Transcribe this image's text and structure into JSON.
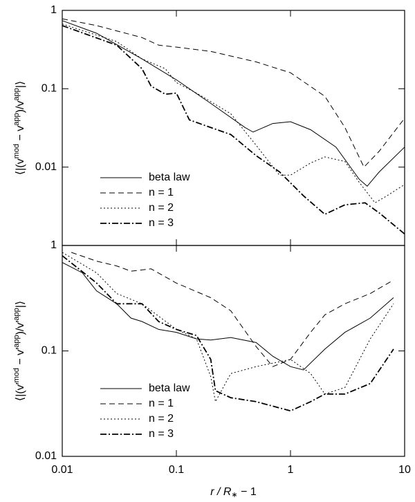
{
  "chart_data": [
    {
      "type": "line",
      "log_x": true,
      "log_y": true,
      "xlim": [
        0.01,
        10
      ],
      "ylim": [
        0.001,
        1
      ],
      "yticks": [
        0.01,
        0.1,
        1
      ],
      "ylabel": [
        "⟨|(v",
        "mod",
        " − v",
        "app",
        ")/v",
        "app",
        "|⟩"
      ],
      "legend": "lower left",
      "series": [
        {
          "name": "beta law",
          "color": "#000000",
          "dash": "solid",
          "x": [
            0.01,
            0.02,
            0.05,
            0.1,
            0.2,
            0.4,
            0.47,
            0.7,
            1,
            1.5,
            2.5,
            4,
            4.7,
            6,
            10
          ],
          "values": [
            0.74,
            0.51,
            0.24,
            0.13,
            0.065,
            0.032,
            0.028,
            0.036,
            0.038,
            0.03,
            0.018,
            0.007,
            0.0057,
            0.0087,
            0.018
          ]
        },
        {
          "name": "n = 1",
          "color": "#000000",
          "dash": "dashed",
          "x": [
            0.01,
            0.02,
            0.05,
            0.07,
            0.1,
            0.2,
            0.5,
            1,
            2,
            3,
            4.4,
            6,
            10
          ],
          "values": [
            0.78,
            0.64,
            0.45,
            0.36,
            0.34,
            0.3,
            0.22,
            0.16,
            0.08,
            0.032,
            0.01,
            0.016,
            0.042
          ]
        },
        {
          "name": "n = 2",
          "color": "#000000",
          "dash": "dotted",
          "x": [
            0.01,
            0.03,
            0.05,
            0.08,
            0.1,
            0.15,
            0.3,
            0.5,
            0.8,
            1,
            1.5,
            2,
            3,
            4,
            5.5,
            7,
            10
          ],
          "values": [
            0.67,
            0.4,
            0.24,
            0.18,
            0.12,
            0.088,
            0.048,
            0.019,
            0.0079,
            0.0079,
            0.0113,
            0.0135,
            0.0118,
            0.0064,
            0.0035,
            0.0043,
            0.006
          ]
        },
        {
          "name": "n = 3",
          "color": "#000000",
          "dash": "dashdot",
          "x": [
            0.01,
            0.03,
            0.05,
            0.06,
            0.08,
            0.1,
            0.13,
            0.2,
            0.3,
            0.5,
            0.8,
            1.3,
            2,
            3,
            4.5,
            6,
            10
          ],
          "values": [
            0.64,
            0.36,
            0.18,
            0.108,
            0.085,
            0.088,
            0.04,
            0.032,
            0.026,
            0.014,
            0.0087,
            0.0043,
            0.0025,
            0.0033,
            0.0035,
            0.0026,
            0.0014
          ]
        }
      ]
    },
    {
      "type": "line",
      "log_x": true,
      "log_y": true,
      "xlim": [
        0.01,
        10
      ],
      "xticks": [
        0.01,
        0.1,
        1,
        10
      ],
      "ylim": [
        0.01,
        1
      ],
      "yticks": [
        0.01,
        0.1,
        1
      ],
      "xlabel": [
        "r / R",
        "∗",
        " − 1"
      ],
      "ylabel": [
        "⟨|(v′",
        "mod",
        " − v′",
        "app",
        ")/v′",
        "app",
        "|⟩"
      ],
      "legend": "lower left",
      "series": [
        {
          "name": "beta law",
          "color": "#000000",
          "dash": "solid",
          "x": [
            0.01,
            0.015,
            0.02,
            0.03,
            0.04,
            0.05,
            0.07,
            0.1,
            0.15,
            0.2,
            0.3,
            0.5,
            0.7,
            1,
            1.3,
            2,
            3,
            5,
            8
          ],
          "values": [
            0.69,
            0.55,
            0.37,
            0.28,
            0.205,
            0.19,
            0.16,
            0.15,
            0.13,
            0.127,
            0.134,
            0.12,
            0.089,
            0.071,
            0.066,
            0.104,
            0.15,
            0.205,
            0.32
          ]
        },
        {
          "name": "n = 1",
          "color": "#000000",
          "dash": "dashed",
          "x": [
            0.012,
            0.02,
            0.03,
            0.04,
            0.06,
            0.1,
            0.2,
            0.3,
            0.5,
            0.7,
            1,
            1.5,
            2,
            3,
            5,
            8
          ],
          "values": [
            0.86,
            0.71,
            0.64,
            0.57,
            0.6,
            0.44,
            0.32,
            0.24,
            0.11,
            0.071,
            0.083,
            0.15,
            0.22,
            0.28,
            0.35,
            0.47
          ]
        },
        {
          "name": "n = 2",
          "color": "#000000",
          "dash": "dotted",
          "x": [
            0.01,
            0.02,
            0.03,
            0.05,
            0.1,
            0.15,
            0.2,
            0.22,
            0.3,
            0.5,
            1,
            1.5,
            2,
            3,
            5,
            8
          ],
          "values": [
            0.86,
            0.55,
            0.35,
            0.28,
            0.16,
            0.13,
            0.057,
            0.033,
            0.061,
            0.071,
            0.083,
            0.061,
            0.039,
            0.045,
            0.13,
            0.28
          ]
        },
        {
          "name": "n = 3",
          "color": "#000000",
          "dash": "dashdot",
          "x": [
            0.01,
            0.02,
            0.03,
            0.05,
            0.07,
            0.1,
            0.15,
            0.2,
            0.22,
            0.3,
            0.5,
            1,
            1.5,
            2,
            3,
            5,
            8
          ],
          "values": [
            0.8,
            0.44,
            0.28,
            0.28,
            0.19,
            0.16,
            0.14,
            0.083,
            0.042,
            0.036,
            0.033,
            0.027,
            0.033,
            0.039,
            0.039,
            0.049,
            0.104
          ]
        }
      ]
    }
  ]
}
